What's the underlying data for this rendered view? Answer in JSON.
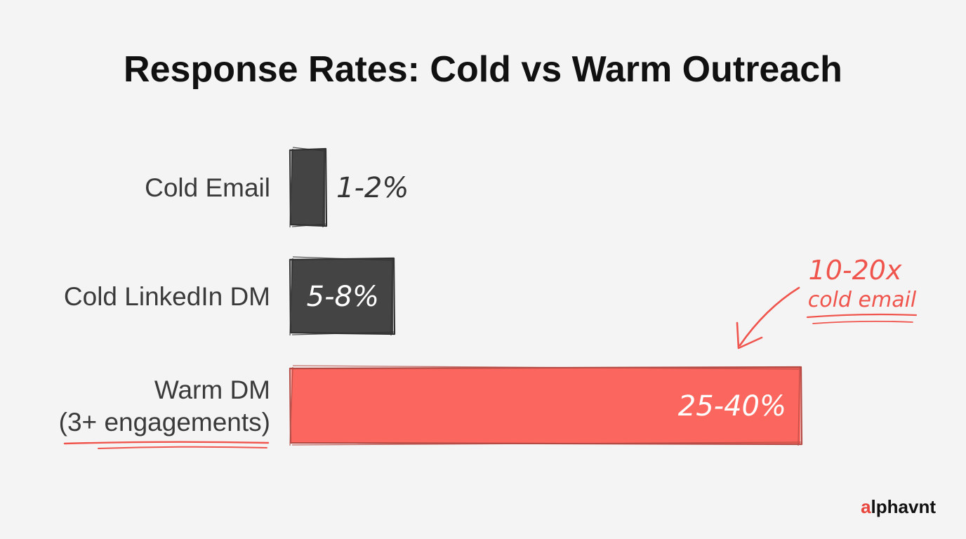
{
  "chart_data": {
    "type": "bar",
    "orientation": "horizontal",
    "title": "Response Rates: Cold vs Warm Outreach",
    "categories": [
      {
        "label_lines": [
          "Cold Email"
        ],
        "value_label": "1-2%",
        "min": 1,
        "max": 2,
        "color": "#444444",
        "label_inside": false,
        "underlined": false
      },
      {
        "label_lines": [
          "Cold LinkedIn DM"
        ],
        "value_label": "5-8%",
        "min": 5,
        "max": 8,
        "color": "#444444",
        "label_inside": true,
        "underlined": false
      },
      {
        "label_lines": [
          "Warm DM",
          "(3+ engagements)"
        ],
        "value_label": "25-40%",
        "min": 25,
        "max": 40,
        "color": "#fb675e",
        "label_inside": true,
        "underlined": true
      }
    ],
    "value_unit": "%",
    "xlim": [
      0,
      40
    ],
    "grid": false,
    "annotation": {
      "lines": [
        "10-20x",
        "cold email"
      ],
      "target_category": "Warm DM",
      "color": "#f0554d"
    }
  },
  "brand": {
    "prefix": "a",
    "rest": "lphavnt",
    "prefix_color": "#e8453c",
    "rest_color": "#111111"
  }
}
